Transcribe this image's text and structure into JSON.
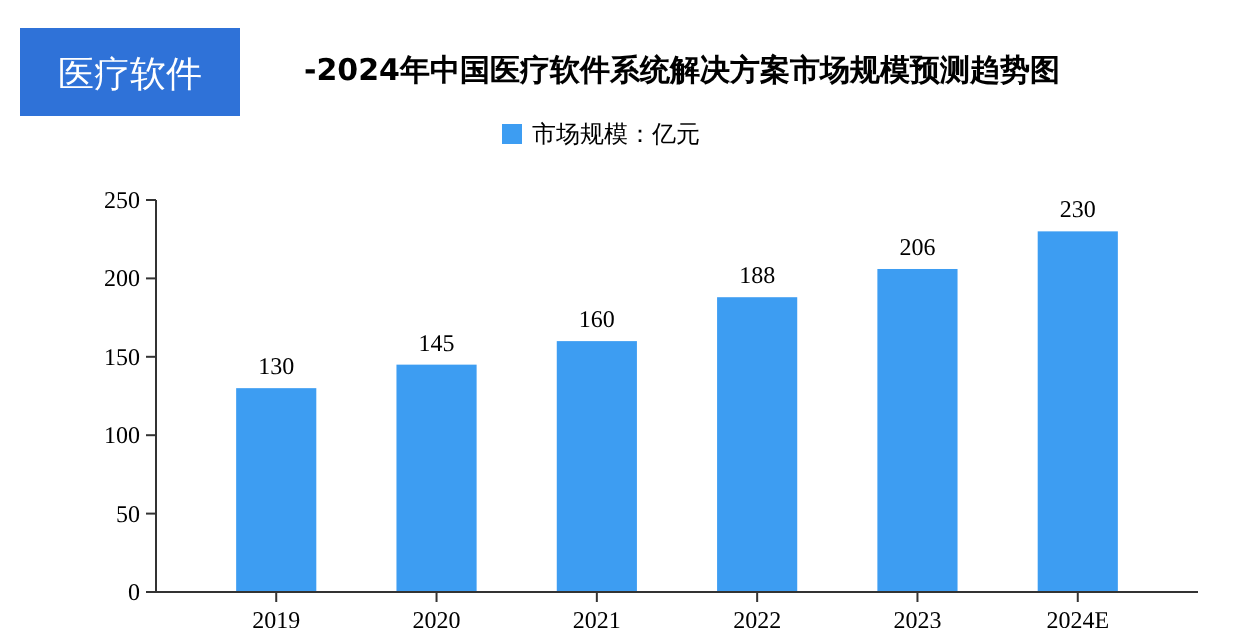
{
  "chart_data": {
    "type": "bar",
    "title": "-2024年中国医疗软件系统解决方案市场规模预测趋势图",
    "annotations": [
      "医疗软件"
    ],
    "categories": [
      "2019",
      "2020",
      "2021",
      "2022",
      "2023",
      "2024E"
    ],
    "series": [
      {
        "name": "市场规模：亿元",
        "color": "#3d9df2",
        "values": [
          130,
          145,
          160,
          188,
          206,
          230
        ]
      }
    ],
    "ylim": [
      0,
      250
    ],
    "yticks": [
      0,
      50,
      100,
      150,
      200,
      250
    ],
    "data_labels": true,
    "legend": "top",
    "grid": false
  }
}
